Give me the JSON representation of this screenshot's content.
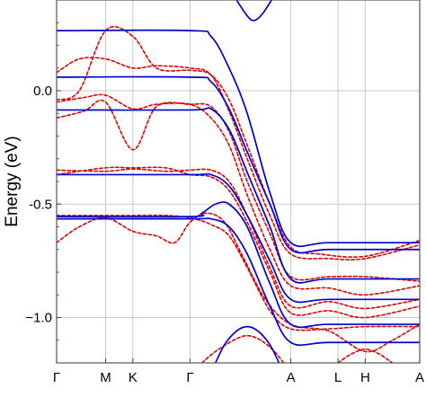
{
  "chart_data": {
    "type": "line",
    "title": "",
    "xlabel": "",
    "ylabel": "Energy (eV)",
    "ylim": [
      -1.2,
      0.4
    ],
    "y_ticks": [
      {
        "value": 0.0,
        "label": "0.0"
      },
      {
        "value": -0.5,
        "label": "-0.5"
      },
      {
        "value": -1.0,
        "label": "−1.0"
      }
    ],
    "x_ticks": [
      {
        "value": 0.0,
        "label": "Γ"
      },
      {
        "value": 0.54,
        "label": "M"
      },
      {
        "value": 0.84,
        "label": "K"
      },
      {
        "value": 1.47,
        "label": "Γ"
      },
      {
        "value": 2.58,
        "label": "A"
      },
      {
        "value": 3.1,
        "label": "L"
      },
      {
        "value": 3.4,
        "label": "H"
      },
      {
        "value": 4.0,
        "label": "A"
      }
    ],
    "xlim": [
      0,
      4.0
    ],
    "grid": true,
    "series_styles": [
      {
        "style": "solid",
        "color": "#0000cc"
      },
      {
        "style": "dashed",
        "color": "#dd0000"
      }
    ],
    "series": [
      {
        "style": "solid",
        "points": [
          [
            0,
            0.265
          ],
          [
            1.47,
            0.265
          ],
          [
            1.7,
            0.24
          ],
          [
            1.9,
            0.1
          ],
          [
            2.1,
            -0.1
          ],
          [
            2.35,
            -0.45
          ],
          [
            2.58,
            -0.67
          ],
          [
            3.0,
            -0.67
          ],
          [
            4.0,
            -0.67
          ]
        ]
      },
      {
        "style": "solid",
        "points": [
          [
            0,
            0.06
          ],
          [
            1.47,
            0.06
          ],
          [
            1.7,
            0.04
          ],
          [
            1.9,
            -0.08
          ],
          [
            2.1,
            -0.27
          ],
          [
            2.35,
            -0.5
          ],
          [
            2.58,
            -0.7
          ],
          [
            3.0,
            -0.7
          ],
          [
            4.0,
            -0.7
          ]
        ]
      },
      {
        "style": "solid",
        "points": [
          [
            0,
            -0.085
          ],
          [
            1.47,
            -0.085
          ],
          [
            1.7,
            -0.08
          ],
          [
            1.9,
            -0.17
          ],
          [
            2.1,
            -0.36
          ],
          [
            2.35,
            -0.6
          ],
          [
            2.58,
            -0.83
          ],
          [
            3.0,
            -0.83
          ],
          [
            4.0,
            -0.83
          ]
        ]
      },
      {
        "style": "solid",
        "points": [
          [
            0,
            -0.37
          ],
          [
            1.47,
            -0.37
          ],
          [
            1.7,
            -0.37
          ],
          [
            1.9,
            -0.42
          ],
          [
            2.1,
            -0.55
          ],
          [
            2.35,
            -0.75
          ],
          [
            2.58,
            -0.92
          ],
          [
            3.0,
            -0.92
          ],
          [
            4.0,
            -0.92
          ]
        ]
      },
      {
        "style": "solid",
        "points": [
          [
            0,
            -0.555
          ],
          [
            1.47,
            -0.555
          ],
          [
            1.6,
            -0.54
          ],
          [
            1.75,
            -0.5
          ],
          [
            1.9,
            -0.5
          ],
          [
            2.1,
            -0.6
          ],
          [
            2.35,
            -0.85
          ],
          [
            2.58,
            -1.03
          ],
          [
            3.0,
            -1.03
          ],
          [
            4.0,
            -1.03
          ]
        ]
      },
      {
        "style": "solid",
        "points": [
          [
            0,
            -0.565
          ],
          [
            1.47,
            -0.565
          ],
          [
            1.7,
            -0.565
          ],
          [
            1.9,
            -0.6
          ],
          [
            2.1,
            -0.72
          ],
          [
            2.35,
            -0.95
          ],
          [
            2.58,
            -1.11
          ],
          [
            3.0,
            -1.11
          ],
          [
            4.0,
            -1.11
          ]
        ]
      },
      {
        "style": "solid",
        "points": [
          [
            1.95,
            0.42
          ],
          [
            2.1,
            0.33
          ],
          [
            2.18,
            0.31
          ],
          [
            2.27,
            0.34
          ],
          [
            2.4,
            0.42
          ]
        ]
      },
      {
        "style": "solid",
        "points": [
          [
            1.75,
            -1.2
          ],
          [
            1.85,
            -1.12
          ],
          [
            1.98,
            -1.06
          ],
          [
            2.1,
            -1.04
          ],
          [
            2.22,
            -1.06
          ],
          [
            2.35,
            -1.12
          ],
          [
            2.45,
            -1.2
          ]
        ]
      },
      {
        "style": "dashed",
        "points": [
          [
            0,
            -0.04
          ],
          [
            0.25,
            0.0
          ],
          [
            0.54,
            0.265
          ],
          [
            0.84,
            0.24
          ],
          [
            1.1,
            0.1
          ],
          [
            1.47,
            0.09
          ],
          [
            1.7,
            0.07
          ],
          [
            1.9,
            -0.04
          ],
          [
            2.1,
            -0.24
          ],
          [
            2.35,
            -0.5
          ],
          [
            2.58,
            -0.69
          ],
          [
            2.9,
            -0.72
          ],
          [
            3.4,
            -0.73
          ],
          [
            4.0,
            -0.66
          ]
        ]
      },
      {
        "style": "dashed",
        "points": [
          [
            0,
            0.08
          ],
          [
            0.25,
            0.14
          ],
          [
            0.54,
            0.14
          ],
          [
            0.84,
            0.1
          ],
          [
            1.1,
            0.11
          ],
          [
            1.47,
            0.1
          ],
          [
            1.7,
            0.07
          ],
          [
            1.9,
            -0.09
          ],
          [
            2.1,
            -0.3
          ],
          [
            2.35,
            -0.55
          ],
          [
            2.58,
            -0.72
          ],
          [
            3.0,
            -0.74
          ],
          [
            3.4,
            -0.74
          ],
          [
            4.0,
            -0.68
          ]
        ]
      },
      {
        "style": "dashed",
        "points": [
          [
            0,
            -0.12
          ],
          [
            0.3,
            -0.09
          ],
          [
            0.54,
            -0.05
          ],
          [
            0.84,
            -0.26
          ],
          [
            1.1,
            -0.07
          ],
          [
            1.47,
            -0.06
          ],
          [
            1.7,
            -0.07
          ],
          [
            1.9,
            -0.18
          ],
          [
            2.1,
            -0.4
          ],
          [
            2.35,
            -0.63
          ],
          [
            2.58,
            -0.82
          ],
          [
            3.0,
            -0.82
          ],
          [
            3.4,
            -0.82
          ],
          [
            4.0,
            -0.84
          ]
        ]
      },
      {
        "style": "dashed",
        "points": [
          [
            0,
            -0.05
          ],
          [
            0.3,
            -0.03
          ],
          [
            0.54,
            -0.02
          ],
          [
            0.84,
            -0.08
          ],
          [
            1.1,
            -0.06
          ],
          [
            1.47,
            -0.06
          ],
          [
            1.7,
            -0.12
          ],
          [
            1.9,
            -0.24
          ],
          [
            2.1,
            -0.46
          ],
          [
            2.35,
            -0.7
          ],
          [
            2.58,
            -0.86
          ],
          [
            3.0,
            -0.87
          ],
          [
            3.4,
            -0.9
          ],
          [
            4.0,
            -0.86
          ]
        ]
      },
      {
        "style": "dashed",
        "points": [
          [
            0,
            -0.35
          ],
          [
            0.54,
            -0.355
          ],
          [
            0.84,
            -0.345
          ],
          [
            1.2,
            -0.355
          ],
          [
            1.47,
            -0.35
          ],
          [
            1.7,
            -0.35
          ],
          [
            1.9,
            -0.4
          ],
          [
            2.1,
            -0.55
          ],
          [
            2.35,
            -0.78
          ],
          [
            2.58,
            -0.95
          ],
          [
            3.0,
            -0.93
          ],
          [
            3.4,
            -0.96
          ],
          [
            4.0,
            -0.92
          ]
        ]
      },
      {
        "style": "dashed",
        "points": [
          [
            0,
            -0.37
          ],
          [
            0.54,
            -0.34
          ],
          [
            0.84,
            -0.34
          ],
          [
            1.2,
            -0.34
          ],
          [
            1.47,
            -0.37
          ],
          [
            1.7,
            -0.38
          ],
          [
            1.9,
            -0.44
          ],
          [
            2.1,
            -0.58
          ],
          [
            2.35,
            -0.8
          ],
          [
            2.58,
            -0.98
          ],
          [
            3.0,
            -0.97
          ],
          [
            3.4,
            -1.0
          ],
          [
            4.0,
            -0.95
          ]
        ]
      },
      {
        "style": "dashed",
        "points": [
          [
            0,
            -0.67
          ],
          [
            0.25,
            -0.6
          ],
          [
            0.54,
            -0.56
          ],
          [
            0.84,
            -0.62
          ],
          [
            1.1,
            -0.64
          ],
          [
            1.3,
            -0.67
          ],
          [
            1.47,
            -0.58
          ],
          [
            1.65,
            -0.54
          ],
          [
            1.85,
            -0.58
          ],
          [
            2.05,
            -0.73
          ],
          [
            2.3,
            -0.92
          ],
          [
            2.58,
            -1.03
          ],
          [
            3.0,
            -1.06
          ],
          [
            3.4,
            -1.15
          ],
          [
            3.7,
            -1.1
          ],
          [
            4.0,
            -1.03
          ]
        ]
      },
      {
        "style": "dashed",
        "points": [
          [
            0,
            -0.55
          ],
          [
            0.54,
            -0.55
          ],
          [
            0.84,
            -0.55
          ],
          [
            1.2,
            -0.55
          ],
          [
            1.47,
            -0.56
          ],
          [
            1.7,
            -0.59
          ],
          [
            1.9,
            -0.64
          ],
          [
            2.1,
            -0.78
          ],
          [
            2.35,
            -0.97
          ],
          [
            2.58,
            -1.05
          ],
          [
            3.0,
            -1.05
          ],
          [
            3.4,
            -1.04
          ],
          [
            4.0,
            -1.04
          ]
        ]
      },
      {
        "style": "dashed",
        "points": [
          [
            1.6,
            -1.2
          ],
          [
            1.75,
            -1.15
          ],
          [
            1.95,
            -1.1
          ],
          [
            2.1,
            -1.08
          ],
          [
            2.25,
            -1.1
          ],
          [
            2.4,
            -1.15
          ],
          [
            2.5,
            -1.2
          ]
        ]
      },
      {
        "style": "dashed",
        "points": [
          [
            3.1,
            -1.2
          ],
          [
            3.25,
            -1.16
          ],
          [
            3.4,
            -1.14
          ],
          [
            3.55,
            -1.16
          ],
          [
            3.7,
            -1.2
          ]
        ]
      }
    ]
  }
}
